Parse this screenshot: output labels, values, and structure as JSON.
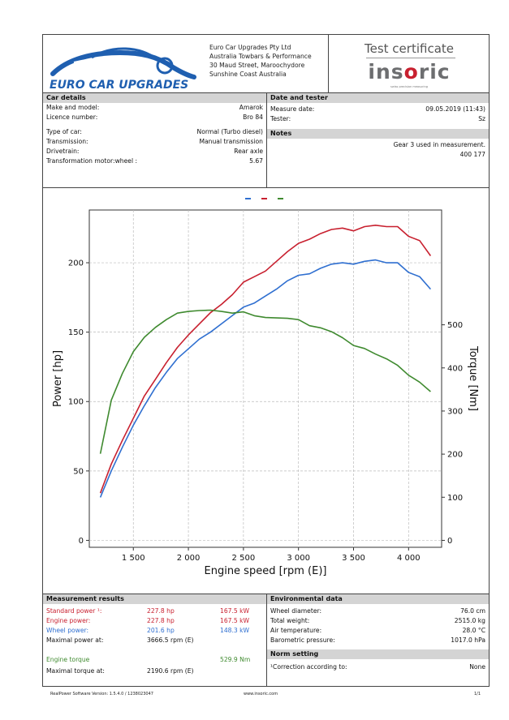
{
  "header": {
    "logo_text": "EURO CAR UPGRADES",
    "company_lines": [
      "Euro Car Upgrades Pty Ltd",
      "Australia Towbars & Performance",
      "30 Maud Street, Maroochydore",
      "Sunshine Coast Australia"
    ],
    "cert_title": "Test certificate",
    "brand_a": "ins",
    "brand_o": "o",
    "brand_b": "ric",
    "brand_tagline": "swiss precision measuring"
  },
  "car_details": {
    "title": "Car details",
    "rows": [
      {
        "label": "Make and model:",
        "value": "Amarok"
      },
      {
        "label": "Licence number:",
        "value": "Bro 84"
      },
      {
        "label": "Type of car:",
        "value": "Normal (Turbo diesel)"
      },
      {
        "label": "Transmission:",
        "value": "Manual transmission"
      },
      {
        "label": "Drivetrain:",
        "value": "Rear axle"
      },
      {
        "label": "Transformation motor:wheel :",
        "value": "5.67"
      }
    ]
  },
  "date_tester": {
    "title": "Date and tester",
    "rows": [
      {
        "label": "Measure date:",
        "value": "09.05.2019 (11:43)"
      },
      {
        "label": "Tester:",
        "value": "Sz"
      }
    ]
  },
  "notes": {
    "title": "Notes",
    "lines": [
      "Gear 3 used in measurement.",
      "400 177"
    ]
  },
  "chart_data": {
    "type": "line",
    "xlabel": "Engine speed [rpm (E)]",
    "ylabel": "Power [hp]",
    "y2label": "Torque [Nm]",
    "xlim": [
      1100,
      4300
    ],
    "ylim": [
      -5,
      238
    ],
    "y2lim": [
      -16.1,
      766.3
    ],
    "x_ticks": [
      1500,
      2000,
      2500,
      3000,
      3500,
      4000
    ],
    "x_tick_labels": [
      "1 500",
      "2 000",
      "2 500",
      "3 000",
      "3 500",
      "4 000"
    ],
    "y_ticks": [
      0,
      50,
      100,
      150,
      200
    ],
    "y2_ticks": [
      0,
      100,
      200,
      300,
      400,
      500
    ],
    "grid": true,
    "legend": "top-center",
    "series": [
      {
        "color": "#2f6fd0",
        "axis": "left",
        "points": [
          [
            1200,
            31
          ],
          [
            1300,
            50
          ],
          [
            1400,
            67
          ],
          [
            1500,
            83
          ],
          [
            1600,
            97
          ],
          [
            1700,
            110
          ],
          [
            1800,
            121
          ],
          [
            1900,
            131
          ],
          [
            2000,
            138
          ],
          [
            2100,
            145
          ],
          [
            2200,
            150
          ],
          [
            2300,
            156
          ],
          [
            2400,
            162
          ],
          [
            2500,
            168
          ],
          [
            2600,
            171
          ],
          [
            2700,
            176
          ],
          [
            2800,
            181
          ],
          [
            2900,
            187
          ],
          [
            3000,
            191
          ],
          [
            3100,
            192
          ],
          [
            3200,
            196
          ],
          [
            3300,
            199
          ],
          [
            3400,
            200
          ],
          [
            3500,
            199
          ],
          [
            3600,
            201
          ],
          [
            3700,
            202
          ],
          [
            3800,
            200
          ],
          [
            3900,
            200
          ],
          [
            4000,
            193
          ],
          [
            4100,
            190
          ],
          [
            4200,
            181
          ]
        ]
      },
      {
        "color": "#c8202f",
        "axis": "left",
        "points": [
          [
            1200,
            34
          ],
          [
            1300,
            55
          ],
          [
            1400,
            72
          ],
          [
            1500,
            88
          ],
          [
            1600,
            104
          ],
          [
            1700,
            116
          ],
          [
            1800,
            128
          ],
          [
            1900,
            139
          ],
          [
            2000,
            148
          ],
          [
            2100,
            156
          ],
          [
            2200,
            164
          ],
          [
            2300,
            170
          ],
          [
            2400,
            177
          ],
          [
            2500,
            186
          ],
          [
            2600,
            190
          ],
          [
            2700,
            194
          ],
          [
            2800,
            201
          ],
          [
            2900,
            208
          ],
          [
            3000,
            214
          ],
          [
            3100,
            217
          ],
          [
            3200,
            221
          ],
          [
            3300,
            224
          ],
          [
            3400,
            225
          ],
          [
            3500,
            223
          ],
          [
            3600,
            226
          ],
          [
            3700,
            227
          ],
          [
            3800,
            226
          ],
          [
            3900,
            226
          ],
          [
            4000,
            219
          ],
          [
            4100,
            216
          ],
          [
            4200,
            205
          ]
        ]
      },
      {
        "color": "#3f8a2f",
        "axis": "right",
        "points": [
          [
            1200,
            201
          ],
          [
            1300,
            325
          ],
          [
            1400,
            387
          ],
          [
            1500,
            438
          ],
          [
            1600,
            471
          ],
          [
            1700,
            494
          ],
          [
            1800,
            512
          ],
          [
            1900,
            527
          ],
          [
            2000,
            531
          ],
          [
            2100,
            533
          ],
          [
            2200,
            534
          ],
          [
            2300,
            531
          ],
          [
            2400,
            527
          ],
          [
            2500,
            530
          ],
          [
            2600,
            521
          ],
          [
            2700,
            517
          ],
          [
            2800,
            516
          ],
          [
            2900,
            515
          ],
          [
            3000,
            512
          ],
          [
            3100,
            498
          ],
          [
            3200,
            493
          ],
          [
            3300,
            484
          ],
          [
            3400,
            470
          ],
          [
            3500,
            452
          ],
          [
            3600,
            445
          ],
          [
            3700,
            432
          ],
          [
            3800,
            421
          ],
          [
            3900,
            406
          ],
          [
            4000,
            383
          ],
          [
            4100,
            367
          ],
          [
            4200,
            345
          ]
        ]
      }
    ]
  },
  "measurement": {
    "title": "Measurement results",
    "rows": [
      {
        "label": "Standard power ¹:",
        "v1": "227.8 hp",
        "v2": "167.5 kW"
      },
      {
        "label": "Engine power:",
        "v1": "227.8 hp",
        "v2": "167.5 kW"
      },
      {
        "label": "Wheel power:",
        "v1": "201.6 hp",
        "v2": "148.3 kW"
      }
    ],
    "max_power_label": "Maximal power at:",
    "max_power_value": "3666.5 rpm (E)",
    "torque_label": "Engine torque",
    "torque_value": "529.9 Nm",
    "max_torque_label": "Maximal torque at:",
    "max_torque_value": "2190.6 rpm (E)"
  },
  "environment": {
    "title": "Environmental data",
    "rows": [
      {
        "label": "Wheel diameter:",
        "value": "76.0 cm"
      },
      {
        "label": "Total weight:",
        "value": "2515.0 kg"
      },
      {
        "label": "Air temperature:",
        "value": "28.0 °C"
      },
      {
        "label": "Barometric pressure:",
        "value": "1017.0 hPa"
      }
    ],
    "norm_title": "Norm setting",
    "norm_label": "¹Correction according to:",
    "norm_value": "None"
  },
  "footer": {
    "software": "RealPower Software Version: 1.5.4.0 / 1238023047",
    "site": "www.insoric.com",
    "page": "1/1"
  },
  "colors": {
    "wheel": "#2f6fd0",
    "engine": "#c8202f",
    "torque": "#3f8a2f",
    "logo_blue": "#1f5fb0"
  }
}
